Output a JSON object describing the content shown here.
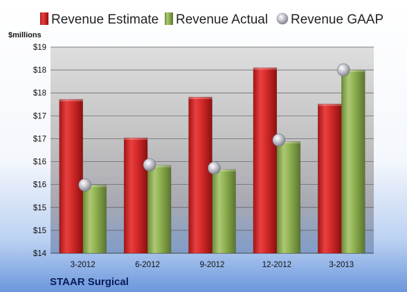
{
  "chart_data": {
    "type": "bar",
    "company": "STAAR Surgical",
    "unit_label": "$millions",
    "categories": [
      "3-2012",
      "6-2012",
      "9-2012",
      "12-2012",
      "3-2013"
    ],
    "y_tick_labels": [
      "$14",
      "$15",
      "$15",
      "$16",
      "$16",
      "$17",
      "$17",
      "$18",
      "$18",
      "$19"
    ],
    "ylim": [
      14,
      18.5
    ],
    "grid": true,
    "legend_position": "top",
    "series": [
      {
        "name": "Revenue Estimate",
        "kind": "bar",
        "color": "#d42a2a",
        "values": [
          17.36,
          16.52,
          17.41,
          18.05,
          17.26
        ]
      },
      {
        "name": "Revenue Actual",
        "kind": "bar",
        "color": "#8fb050",
        "values": [
          15.49,
          15.92,
          15.83,
          16.44,
          18.0
        ]
      },
      {
        "name": "Revenue GAAP",
        "kind": "marker",
        "color": "#a8a8b4",
        "values": [
          15.49,
          15.93,
          15.86,
          16.47,
          18.0
        ]
      }
    ]
  }
}
